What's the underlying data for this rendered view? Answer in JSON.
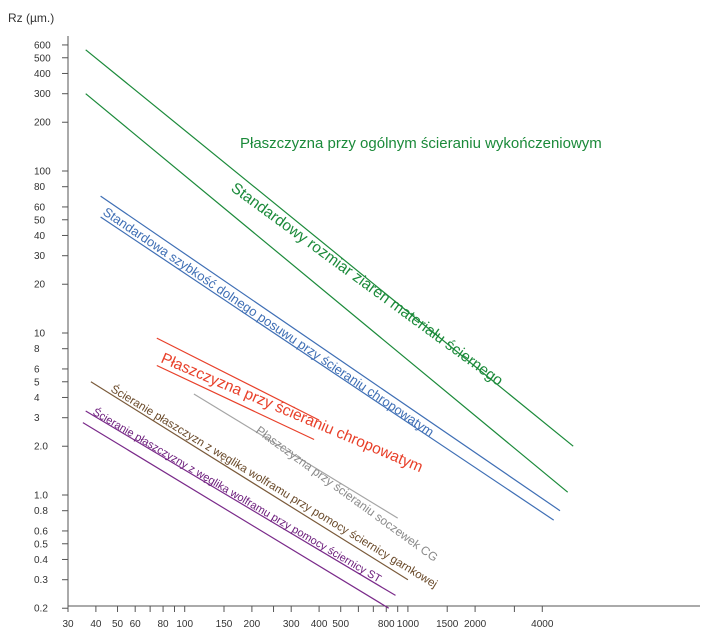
{
  "chart_data": {
    "type": "line",
    "title": "Płaszczyzna przy ogólnym ścieraniu wykończeniowym",
    "ylabel": "Rz (µm.)",
    "xlabel": "",
    "x_scale": "log",
    "y_scale": "log",
    "xlim": [
      30,
      15000
    ],
    "ylim": [
      0.18,
      800
    ],
    "grid": false,
    "x_ticks": [
      {
        "v": 30,
        "label": "30"
      },
      {
        "v": 40,
        "label": "40"
      },
      {
        "v": 50,
        "label": "50"
      },
      {
        "v": 60,
        "label": "60"
      },
      {
        "v": 80,
        "label": "80"
      },
      {
        "v": 100,
        "label": "100"
      },
      {
        "v": 150,
        "label": "150"
      },
      {
        "v": 200,
        "label": "200"
      },
      {
        "v": 300,
        "label": "300"
      },
      {
        "v": 400,
        "label": "400"
      },
      {
        "v": 500,
        "label": "500"
      },
      {
        "v": 800,
        "label": "800"
      },
      {
        "v": 1000,
        "label": "1000"
      },
      {
        "v": 1500,
        "label": "1500"
      },
      {
        "v": 2000,
        "label": "2000"
      },
      {
        "v": 4000,
        "label": "4000"
      }
    ],
    "x_minor_ticks": [
      70,
      90,
      250,
      600,
      700,
      900,
      3000
    ],
    "y_ticks": [
      {
        "v": 600,
        "label": "600"
      },
      {
        "v": 500,
        "label": "500"
      },
      {
        "v": 400,
        "label": "400"
      },
      {
        "v": 300,
        "label": "300"
      },
      {
        "v": 200,
        "label": "200"
      },
      {
        "v": 100,
        "label": "100"
      },
      {
        "v": 80,
        "label": "80"
      },
      {
        "v": 60,
        "label": "60"
      },
      {
        "v": 50,
        "label": "50"
      },
      {
        "v": 40,
        "label": "40"
      },
      {
        "v": 30,
        "label": "30"
      },
      {
        "v": 20,
        "label": "20"
      },
      {
        "v": 10,
        "label": "10"
      },
      {
        "v": 8,
        "label": "8"
      },
      {
        "v": 6,
        "label": "6"
      },
      {
        "v": 5,
        "label": "5"
      },
      {
        "v": 4,
        "label": "4"
      },
      {
        "v": 3,
        "label": "3"
      },
      {
        "v": 2.0,
        "label": "2.0"
      },
      {
        "v": 1.0,
        "label": "1.0"
      },
      {
        "v": 0.8,
        "label": "0.8"
      },
      {
        "v": 0.6,
        "label": "0.6"
      },
      {
        "v": 0.5,
        "label": "0.5"
      },
      {
        "v": 0.4,
        "label": "0.4"
      },
      {
        "v": 0.3,
        "label": "0.3"
      },
      {
        "v": 0.2,
        "label": "0.2"
      }
    ],
    "series": [
      {
        "name": "Standardowy rozmiar ziaren materiału ściernego",
        "color": "#1b8a3a",
        "points": [
          [
            36,
            560
          ],
          [
            5500,
            2.0
          ]
        ]
      },
      {
        "name": "",
        "color": "#1b8a3a",
        "points": [
          [
            36,
            300
          ],
          [
            5200,
            1.04
          ]
        ]
      },
      {
        "name": "Standardowa szybkość dolnego posuwu przy ścieraniu chropowatym",
        "color": "#3f6fb5",
        "points": [
          [
            42,
            70
          ],
          [
            4800,
            0.8
          ]
        ]
      },
      {
        "name": "",
        "color": "#3f6fb5",
        "points": [
          [
            42,
            52
          ],
          [
            4500,
            0.7
          ]
        ]
      },
      {
        "name": "Płaszczyzna przy ścieraniu chropowatym",
        "color": "#e8402a",
        "points": [
          [
            75,
            9.3
          ],
          [
            400,
            2.9
          ]
        ]
      },
      {
        "name": "",
        "color": "#e8402a",
        "points": [
          [
            75,
            6.3
          ],
          [
            380,
            2.2
          ]
        ]
      },
      {
        "name": "Płaszczyzna przy ścieraniu soczewek CG",
        "color": "#a5a5a5",
        "points": [
          [
            110,
            4.2
          ],
          [
            900,
            0.72
          ]
        ]
      },
      {
        "name": "Ścieranie płaszczyzn z węglika wolframu przy pomocy ściernicy garnkowej",
        "color": "#7a5a3a",
        "points": [
          [
            38,
            5.0
          ],
          [
            1000,
            0.3
          ]
        ]
      },
      {
        "name": "Ścieranie płaszczyzny z węglika wolframu przy pomocy ściernicy ST",
        "color": "#7a2a8a",
        "points": [
          [
            36,
            3.3
          ],
          [
            880,
            0.24
          ]
        ]
      },
      {
        "name": "",
        "color": "#7a2a8a",
        "points": [
          [
            35,
            2.8
          ],
          [
            820,
            0.2
          ]
        ]
      }
    ],
    "annotations": [
      {
        "text": "Płaszczyzna przy ogólnym ścieraniu wykończeniowym",
        "color": "#1b8a3a"
      },
      {
        "text": "Standardowy rozmiar ziaren materiału ściernego",
        "color": "#1b8a3a"
      },
      {
        "text": "Standardowa szybkość dolnego posuwu przy ścieraniu chropowatym",
        "color": "#3f6fb5"
      },
      {
        "text": "Płaszczyzna przy ścieraniu chropowatym",
        "color": "#e8402a"
      },
      {
        "text": "Płaszczyzna przy ścieraniu soczewek CG",
        "color": "#8a8a8a"
      },
      {
        "text": "Ścieranie płaszczyzn z węglika wolframu przy pomocy ściernicy garnkowej",
        "color": "#6a4a2a"
      },
      {
        "text": "Ścieranie płaszczyzny z węglika wolframu przy pomocy ściernicy ST",
        "color": "#6a1a7a"
      }
    ]
  }
}
